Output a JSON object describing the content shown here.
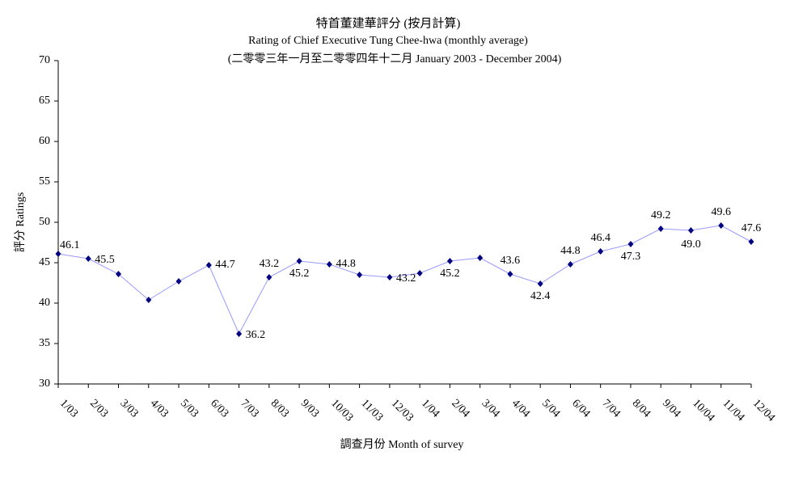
{
  "chart_data": {
    "type": "line",
    "title": "特首董建華評分 (按月計算)",
    "subtitle": "Rating of Chief Executive Tung Chee-hwa  (monthly average)",
    "subtitle2": "(二零零三年一月至二零零四年十二月 January 2003 - December 2004)",
    "x_label": "調查月份 Month of survey",
    "y_label": "評分 Ratings",
    "categories": [
      "1/03",
      "2/03",
      "3/03",
      "4/03",
      "5/03",
      "6/03",
      "7/03",
      "8/03",
      "9/03",
      "10/03",
      "11/03",
      "12/03",
      "1/04",
      "2/04",
      "3/04",
      "4/04",
      "5/04",
      "6/04",
      "7/04",
      "8/04",
      "9/04",
      "10/04",
      "11/04",
      "12/04"
    ],
    "series": [
      {
        "name": "Ratings",
        "color": "#9999ff",
        "marker_color": "#000080",
        "values": [
          46.1,
          45.5,
          43.6,
          40.4,
          42.7,
          44.7,
          36.2,
          43.2,
          45.2,
          44.8,
          43.5,
          43.2,
          43.7,
          45.2,
          45.6,
          43.6,
          42.4,
          44.8,
          46.4,
          47.3,
          49.2,
          49.0,
          49.6,
          47.6
        ],
        "value_labels": [
          "46.1",
          "45.5",
          null,
          null,
          null,
          "44.7",
          "36.2",
          "43.2",
          "45.2",
          "44.8",
          null,
          "43.2",
          null,
          "45.2",
          null,
          "43.6",
          "42.4",
          "44.8",
          "46.4",
          "47.3",
          "49.2",
          "49.0",
          "49.6",
          "47.6"
        ]
      }
    ],
    "ylim": [
      30,
      70
    ],
    "yticks": [
      30,
      35,
      40,
      45,
      50,
      55,
      60,
      65,
      70
    ],
    "grid": false
  }
}
